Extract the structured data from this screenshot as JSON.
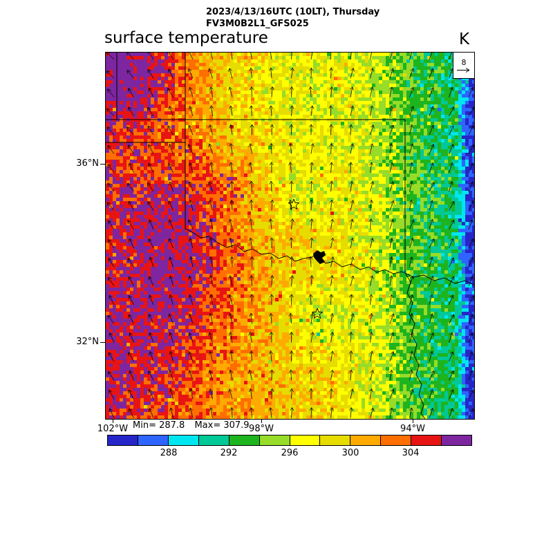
{
  "header": {
    "title_line1": "2023/4/13/16UTC (10LT), Thursday",
    "title_line2": "FV3M0B2L1_GFS025",
    "field_label": "surface temperature",
    "unit_label": "K"
  },
  "vector_ref": {
    "value": "8"
  },
  "axes": {
    "lat_ticks": [
      "36°N",
      "32°N"
    ],
    "lon_ticks": [
      "102°W",
      "98°W",
      "94°W"
    ]
  },
  "stats": {
    "min": "Min= 287.8",
    "max": "Max= 307.9"
  },
  "colorbar": {
    "tick_labels": [
      "288",
      "292",
      "296",
      "300",
      "304"
    ],
    "colors": [
      "#2626c8",
      "#2e64ff",
      "#00e6f0",
      "#00c896",
      "#1eb41e",
      "#96dc28",
      "#ffff00",
      "#e6dc00",
      "#ffaa00",
      "#ff6e00",
      "#e81414",
      "#7d26a0"
    ]
  },
  "chart_data": {
    "type": "heatmap",
    "title": "surface temperature",
    "units": "K",
    "model_run": "2023/4/13/16UTC (10LT), Thursday",
    "model_id": "FV3M0B2L1_GFS025",
    "value_min": 287.8,
    "value_max": 307.9,
    "color_levels": [
      284,
      286,
      288,
      290,
      292,
      294,
      296,
      298,
      300,
      302,
      304,
      306,
      308
    ],
    "colorbar_tick_values": [
      288,
      292,
      296,
      300,
      304
    ],
    "x_tick_labels": [
      "102°W",
      "98°W",
      "94°W"
    ],
    "y_tick_labels": [
      "36°N",
      "32°N"
    ],
    "overlay": "wind vectors (arrows), reference magnitude 8; state borders; two star markers; lake polygon",
    "spatial_pattern": "warmest (304-308 K, red/purple) in west, yellow/orange (296-302 K) in center, green (290-296 K) in east, cyan-blue strip (285-290 K) along far east edge",
    "legend_position": "bottom horizontal colorbar"
  }
}
